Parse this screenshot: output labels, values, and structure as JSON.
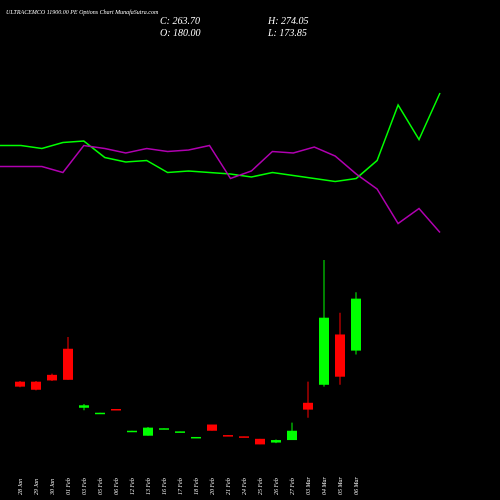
{
  "chart_data": {
    "type": "candlestick",
    "title": "ULTRACEMCO 11900.00 PE Options Chart MunafaSutra.com",
    "stats": {
      "close": "C: 263.70",
      "high": "H: 274.05",
      "open": "O: 180.00",
      "low": "L: 173.85"
    },
    "categories": [
      "28 Jan",
      "29 Jan",
      "30 Jan",
      "01 Feb",
      "03 Feb",
      "05 Feb",
      "06 Feb",
      "12 Feb",
      "13 Feb",
      "16 Feb",
      "17 Feb",
      "18 Feb",
      "20 Feb",
      "21 Feb",
      "24 Feb",
      "25 Feb",
      "26 Feb",
      "27 Feb",
      "03 Mar",
      "04 Mar",
      "05 Mar",
      "06 Mar"
    ],
    "open": [
      130,
      130,
      141,
      183,
      88,
      78,
      86,
      49,
      43,
      54,
      49,
      40,
      61,
      44,
      42,
      38,
      32,
      36,
      96,
      125,
      206,
      180.0
    ],
    "high": [
      131,
      131,
      143,
      202,
      94,
      80,
      86,
      51,
      57,
      55,
      50,
      41,
      61,
      44,
      42,
      38,
      37,
      64,
      130,
      326,
      241,
      274.05
    ],
    "low": [
      121,
      116,
      131,
      133,
      84,
      78,
      84,
      49,
      43,
      54,
      49,
      40,
      51,
      43,
      41,
      29,
      31,
      36,
      72,
      122,
      125,
      173.85
    ],
    "close": [
      122,
      117,
      132,
      133,
      92,
      80,
      84,
      51,
      56,
      55,
      50,
      41,
      51,
      43,
      41,
      29,
      36,
      51,
      85,
      233,
      138,
      263.7
    ],
    "up_color": "#00ff00",
    "down_color": "#ff0000",
    "ylim": [
      20,
      342
    ],
    "y2lim": [
      0,
      100
    ],
    "series": [
      {
        "color": "#00ff00",
        "axis": "y2",
        "values": [
          63,
          63,
          61,
          65,
          66,
          55,
          52,
          53,
          45,
          46,
          45,
          44,
          42,
          45,
          43,
          41,
          39,
          41,
          53,
          90,
          67,
          98
        ]
      },
      {
        "color": "#b000b0",
        "axis": "y2",
        "values": [
          49,
          49,
          49,
          45,
          63,
          61,
          58,
          61,
          59,
          60,
          63,
          41,
          46,
          59,
          58,
          62,
          56,
          44,
          34,
          11,
          21,
          5
        ]
      }
    ]
  }
}
